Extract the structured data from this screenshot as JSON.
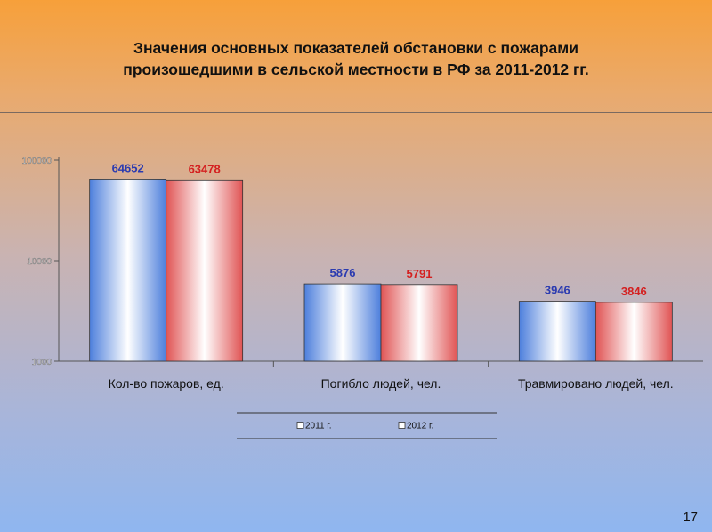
{
  "title": {
    "line1": "Значения основных показателей обстановки с пожарами",
    "line2": "произошедшими в сельской местности в РФ за 2011-2012 гг."
  },
  "page_number": "17",
  "colors": {
    "series_2011": "#4d7fdc",
    "series_2012": "#e05454",
    "label_2011": "#2b3bb0",
    "label_2012": "#d42020"
  },
  "chart_data": {
    "type": "bar",
    "yscale": "log",
    "ylim": [
      1000,
      100000
    ],
    "yticks": [
      1000,
      10000,
      100000
    ],
    "ytick_labels": [
      "1000",
      "10000",
      "100000"
    ],
    "categories": [
      "Кол-во пожаров, ед.",
      "Погибло людей, чел.",
      "Травмировано людей, чел."
    ],
    "series": [
      {
        "name": "2011 г.",
        "values": [
          64652,
          5876,
          3946
        ]
      },
      {
        "name": "2012 г.",
        "values": [
          63478,
          5791,
          3846
        ]
      }
    ],
    "legend_position": "bottom"
  }
}
